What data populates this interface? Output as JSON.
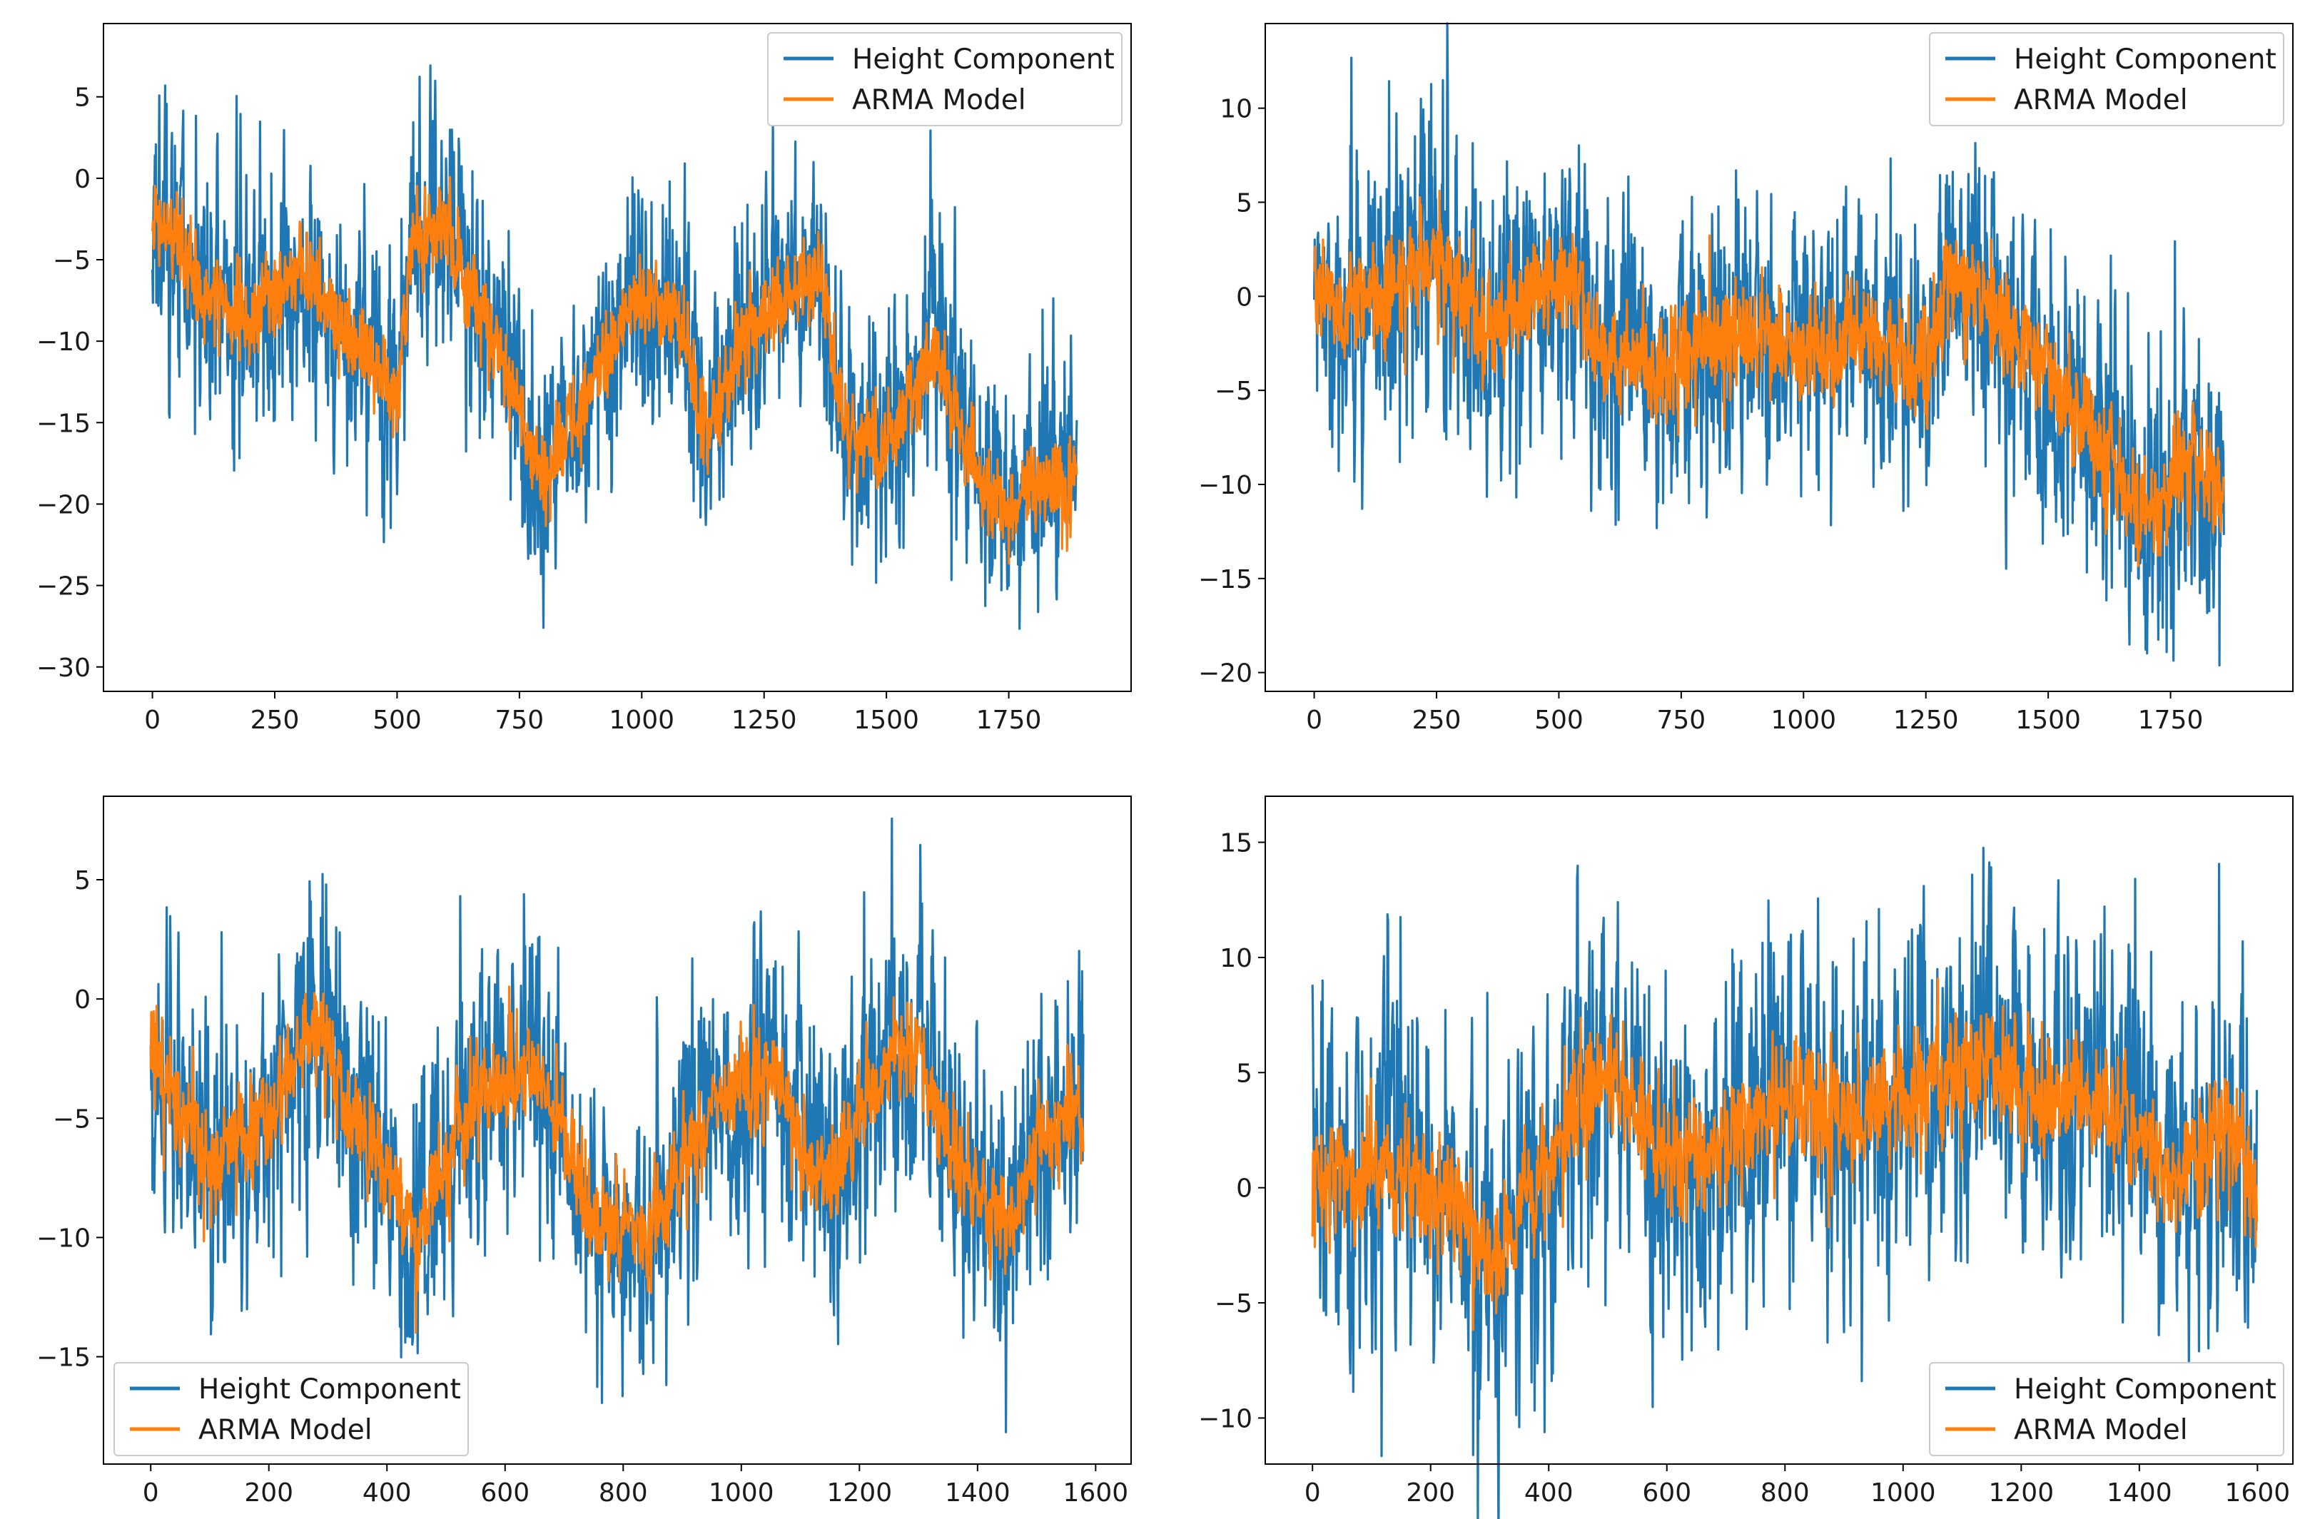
{
  "colors": {
    "height": "#1f77b4",
    "arma": "#ff7f0e",
    "axis": "#000000",
    "legend_border": "#cccccc"
  },
  "chart_data": [
    {
      "type": "line",
      "n": 1890,
      "seed": 11,
      "xlim": [
        -100,
        2000
      ],
      "ylim": [
        -31.5,
        9.5
      ],
      "xticks": [
        0,
        250,
        500,
        750,
        1000,
        1250,
        1500,
        1750
      ],
      "yticks": [
        5,
        0,
        -5,
        -10,
        -15,
        -20,
        -25,
        -30
      ],
      "legend_loc": "upper right",
      "noise_scale": 3.6,
      "arma_noise": 1.2,
      "trend": [
        [
          0,
          -2
        ],
        [
          100,
          -7
        ],
        [
          200,
          -9
        ],
        [
          300,
          -5
        ],
        [
          380,
          -9
        ],
        [
          450,
          -11
        ],
        [
          500,
          -13
        ],
        [
          530,
          -4
        ],
        [
          600,
          -3
        ],
        [
          700,
          -10
        ],
        [
          800,
          -19
        ],
        [
          900,
          -12
        ],
        [
          1000,
          -7
        ],
        [
          1080,
          -9
        ],
        [
          1130,
          -16
        ],
        [
          1200,
          -10
        ],
        [
          1300,
          -7
        ],
        [
          1370,
          -6
        ],
        [
          1420,
          -16
        ],
        [
          1500,
          -16
        ],
        [
          1600,
          -11
        ],
        [
          1700,
          -19
        ],
        [
          1750,
          -20
        ],
        [
          1890,
          -18
        ]
      ],
      "series": [
        {
          "name": "Height Component",
          "color_key": "height"
        },
        {
          "name": "ARMA Model",
          "color_key": "arma"
        }
      ]
    },
    {
      "type": "line",
      "n": 1860,
      "seed": 23,
      "xlim": [
        -100,
        2000
      ],
      "ylim": [
        -21,
        14.5
      ],
      "xticks": [
        0,
        250,
        500,
        750,
        1000,
        1250,
        1500,
        1750
      ],
      "yticks": [
        10,
        5,
        0,
        -5,
        -10,
        -15,
        -20
      ],
      "legend_loc": "upper right",
      "noise_scale": 3.6,
      "arma_noise": 1.3,
      "trend": [
        [
          0,
          0
        ],
        [
          100,
          -1
        ],
        [
          250,
          2
        ],
        [
          350,
          -2
        ],
        [
          500,
          1
        ],
        [
          600,
          -3
        ],
        [
          700,
          -4
        ],
        [
          850,
          -2
        ],
        [
          1000,
          -3
        ],
        [
          1100,
          -2
        ],
        [
          1200,
          -3
        ],
        [
          1250,
          -4
        ],
        [
          1300,
          1
        ],
        [
          1400,
          -1
        ],
        [
          1500,
          -4
        ],
        [
          1600,
          -8
        ],
        [
          1700,
          -12
        ],
        [
          1800,
          -8
        ],
        [
          1860,
          -11
        ]
      ],
      "series": [
        {
          "name": "Height Component",
          "color_key": "height"
        },
        {
          "name": "ARMA Model",
          "color_key": "arma"
        }
      ]
    },
    {
      "type": "line",
      "n": 1580,
      "seed": 37,
      "xlim": [
        -80,
        1660
      ],
      "ylim": [
        -19.5,
        8.5
      ],
      "xticks": [
        0,
        200,
        400,
        600,
        800,
        1000,
        1200,
        1400,
        1600
      ],
      "yticks": [
        5,
        0,
        -5,
        -10,
        -15
      ],
      "legend_loc": "lower left",
      "noise_scale": 3.0,
      "arma_noise": 1.0,
      "trend": [
        [
          0,
          -2
        ],
        [
          100,
          -7
        ],
        [
          200,
          -5
        ],
        [
          270,
          -1
        ],
        [
          350,
          -5
        ],
        [
          450,
          -10
        ],
        [
          550,
          -4
        ],
        [
          650,
          -3
        ],
        [
          750,
          -9
        ],
        [
          850,
          -10
        ],
        [
          950,
          -4
        ],
        [
          1050,
          -3
        ],
        [
          1100,
          -6
        ],
        [
          1150,
          -8
        ],
        [
          1250,
          -2
        ],
        [
          1300,
          -2
        ],
        [
          1350,
          -6
        ],
        [
          1450,
          -10
        ],
        [
          1500,
          -6
        ],
        [
          1580,
          -5
        ]
      ],
      "series": [
        {
          "name": "Height Component",
          "color_key": "height"
        },
        {
          "name": "ARMA Model",
          "color_key": "arma"
        }
      ]
    },
    {
      "type": "line",
      "n": 1600,
      "seed": 53,
      "xlim": [
        -80,
        1660
      ],
      "ylim": [
        -12,
        17
      ],
      "xticks": [
        0,
        200,
        400,
        600,
        800,
        1000,
        1200,
        1400,
        1600
      ],
      "yticks": [
        15,
        10,
        5,
        0,
        -5,
        -10
      ],
      "legend_loc": "lower right",
      "noise_scale": 3.6,
      "arma_noise": 1.2,
      "trend": [
        [
          0,
          0
        ],
        [
          100,
          1
        ],
        [
          200,
          0
        ],
        [
          300,
          -3
        ],
        [
          350,
          -1
        ],
        [
          450,
          4
        ],
        [
          500,
          5
        ],
        [
          600,
          1
        ],
        [
          700,
          2
        ],
        [
          800,
          4
        ],
        [
          900,
          3
        ],
        [
          1000,
          4
        ],
        [
          1100,
          5
        ],
        [
          1150,
          6
        ],
        [
          1200,
          4
        ],
        [
          1300,
          4
        ],
        [
          1400,
          3
        ],
        [
          1450,
          0
        ],
        [
          1550,
          3
        ],
        [
          1600,
          0
        ]
      ],
      "series": [
        {
          "name": "Height Component",
          "color_key": "height"
        },
        {
          "name": "ARMA Model",
          "color_key": "arma"
        }
      ]
    }
  ]
}
